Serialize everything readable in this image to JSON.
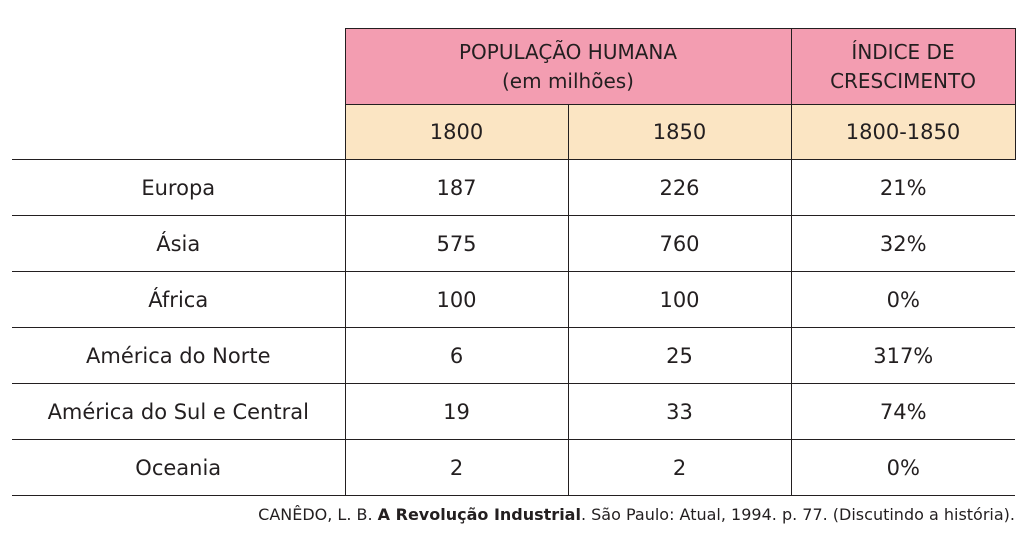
{
  "table": {
    "header_population": "POPULAÇÃO HUMANA",
    "header_population_unit": "(em milhões)",
    "header_index_line1": "ÍNDICE DE",
    "header_index_line2": "CRESCIMENTO",
    "col_1800": "1800",
    "col_1850": "1850",
    "col_period": "1800-1850",
    "rows": [
      {
        "region": "Europa",
        "v1800": "187",
        "v1850": "226",
        "index": "21%"
      },
      {
        "region": "Ásia",
        "v1800": "575",
        "v1850": "760",
        "index": "32%"
      },
      {
        "region": "África",
        "v1800": "100",
        "v1850": "100",
        "index": "0%"
      },
      {
        "region": "América do Norte",
        "v1800": "6",
        "v1850": "25",
        "index": "317%"
      },
      {
        "region": "América do Sul e Central",
        "v1800": "19",
        "v1850": "33",
        "index": "74%"
      },
      {
        "region": "Oceania",
        "v1800": "2",
        "v1850": "2",
        "index": "0%"
      }
    ]
  },
  "colors": {
    "header_pink": "#f39db1",
    "header_cream": "#fbe5c3",
    "line": "#231f20"
  },
  "source": {
    "author": "CANÊDO, L. B.",
    "title": "A Revolução Industrial",
    "rest": ". São Paulo: Atual, 1994. p. 77. (Discutindo a história)."
  }
}
